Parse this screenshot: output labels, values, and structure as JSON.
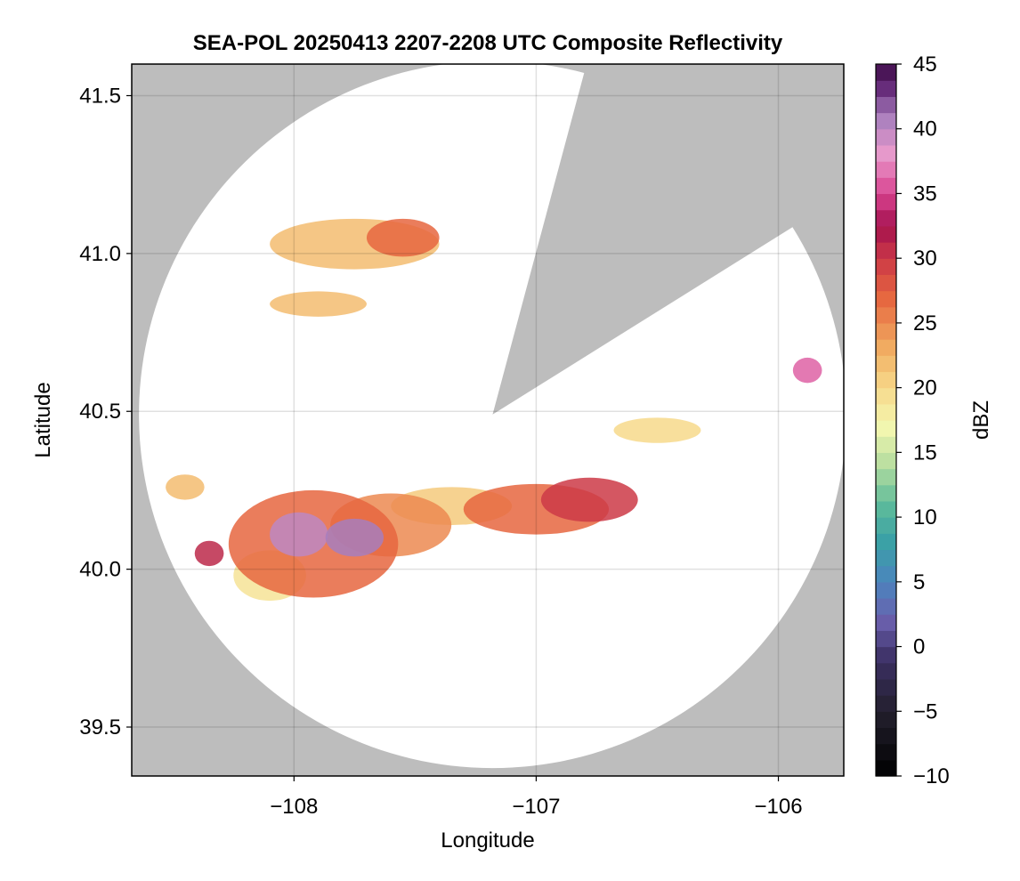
{
  "chart_data": {
    "type": "heatmap",
    "title": "SEA-POL 20250413 2207-2208 UTC Composite Reflectivity",
    "xlabel": "Longitude",
    "ylabel": "Latitude",
    "xlim": [
      -108.67,
      -105.73
    ],
    "ylim": [
      39.345,
      41.6
    ],
    "xticks": [
      -108,
      -107,
      -106
    ],
    "xtick_labels": [
      "−108",
      "−107",
      "−106"
    ],
    "yticks": [
      39.5,
      40.0,
      40.5,
      41.0,
      41.5
    ],
    "ytick_labels": [
      "39.5",
      "40.0",
      "40.5",
      "41.0",
      "41.5"
    ],
    "grid": true,
    "background_color": "#bdbdbd",
    "radar": {
      "center_lon": -107.18,
      "center_lat": 40.49,
      "range_lat_deg": 1.12,
      "blocked_sectors_deg_clockwise_from_north": [
        [
          15,
          58
        ]
      ]
    },
    "colorbar": {
      "label": "dBZ",
      "vmin": -10,
      "vmax": 45,
      "step": 1.25,
      "ticks": [
        -10,
        -5,
        0,
        5,
        10,
        15,
        20,
        25,
        30,
        35,
        40,
        45
      ],
      "tick_labels": [
        "−10",
        "−5",
        "0",
        "5",
        "10",
        "15",
        "20",
        "25",
        "30",
        "35",
        "40",
        "45"
      ],
      "colormap_stops": [
        {
          "v": -10,
          "c": "#000000"
        },
        {
          "v": -5,
          "c": "#23202e"
        },
        {
          "v": -1,
          "c": "#3b2f63"
        },
        {
          "v": 2,
          "c": "#6a5fac"
        },
        {
          "v": 5,
          "c": "#4c84be"
        },
        {
          "v": 8,
          "c": "#3aa0a6"
        },
        {
          "v": 11,
          "c": "#5dbb9b"
        },
        {
          "v": 14,
          "c": "#b5dd9f"
        },
        {
          "v": 17,
          "c": "#f4f7b0"
        },
        {
          "v": 20,
          "c": "#f7d98b"
        },
        {
          "v": 23,
          "c": "#f1ad62"
        },
        {
          "v": 27,
          "c": "#e6663f"
        },
        {
          "v": 30,
          "c": "#cc3947"
        },
        {
          "v": 32.5,
          "c": "#a4114e"
        },
        {
          "v": 35,
          "c": "#d94490"
        },
        {
          "v": 38,
          "c": "#e99acc"
        },
        {
          "v": 41,
          "c": "#a77ebd"
        },
        {
          "v": 43,
          "c": "#6a2f7e"
        },
        {
          "v": 45,
          "c": "#3d0a47"
        }
      ]
    },
    "echo_cells": [
      {
        "lon": -107.98,
        "lat": 40.11,
        "r_lon": 0.12,
        "r_lat": 0.07,
        "dbz": 40
      },
      {
        "lon": -107.75,
        "lat": 40.1,
        "r_lon": 0.12,
        "r_lat": 0.06,
        "dbz": 41
      },
      {
        "lon": -107.92,
        "lat": 40.08,
        "r_lon": 0.35,
        "r_lat": 0.17,
        "dbz": 27
      },
      {
        "lon": -107.6,
        "lat": 40.14,
        "r_lon": 0.25,
        "r_lat": 0.1,
        "dbz": 25
      },
      {
        "lon": -107.0,
        "lat": 40.19,
        "r_lon": 0.3,
        "r_lat": 0.08,
        "dbz": 27
      },
      {
        "lon": -106.78,
        "lat": 40.22,
        "r_lon": 0.2,
        "r_lat": 0.07,
        "dbz": 30
      },
      {
        "lon": -107.35,
        "lat": 40.2,
        "r_lon": 0.25,
        "r_lat": 0.06,
        "dbz": 21
      },
      {
        "lon": -108.1,
        "lat": 39.98,
        "r_lon": 0.15,
        "r_lat": 0.08,
        "dbz": 19
      },
      {
        "lon": -108.35,
        "lat": 40.05,
        "r_lon": 0.06,
        "r_lat": 0.04,
        "dbz": 31
      },
      {
        "lon": -108.45,
        "lat": 40.26,
        "r_lon": 0.08,
        "r_lat": 0.04,
        "dbz": 22
      },
      {
        "lon": -106.5,
        "lat": 40.44,
        "r_lon": 0.18,
        "r_lat": 0.04,
        "dbz": 20
      },
      {
        "lon": -105.88,
        "lat": 40.63,
        "r_lon": 0.06,
        "r_lat": 0.04,
        "dbz": 36
      },
      {
        "lon": -107.75,
        "lat": 41.03,
        "r_lon": 0.35,
        "r_lat": 0.08,
        "dbz": 22
      },
      {
        "lon": -107.55,
        "lat": 41.05,
        "r_lon": 0.15,
        "r_lat": 0.06,
        "dbz": 27
      },
      {
        "lon": -107.9,
        "lat": 40.84,
        "r_lon": 0.2,
        "r_lat": 0.04,
        "dbz": 22
      }
    ]
  }
}
